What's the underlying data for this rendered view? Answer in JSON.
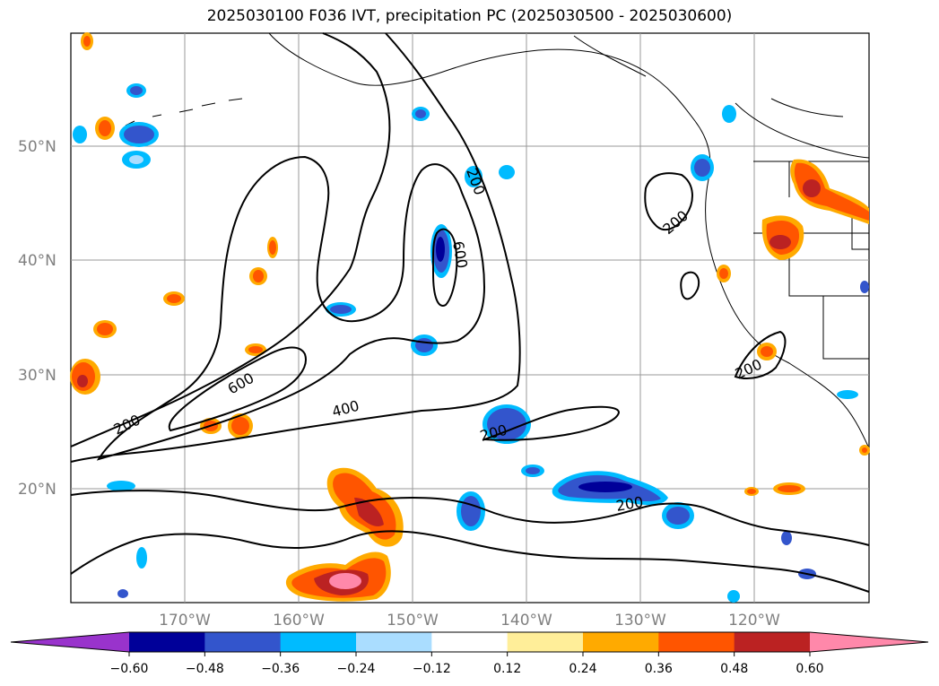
{
  "title": "2025030100 F036 IVT, precipitation PC (2025030500 - 2025030600)",
  "latitude_labels": [
    "50°N",
    "40°N",
    "30°N",
    "20°N"
  ],
  "longitude_labels": [
    "170°W",
    "160°W",
    "150°W",
    "140°W",
    "130°W",
    "120°W"
  ],
  "map_extent": {
    "lon_min": -180,
    "lon_max": -110,
    "lat_min": 10,
    "lat_max": 60
  },
  "ivt_contour_labels": [
    "200",
    "400",
    "600",
    "200",
    "600",
    "200",
    "200",
    "200",
    "200"
  ],
  "colorbar": {
    "ticks": [
      "−0.60",
      "−0.48",
      "−0.36",
      "−0.24",
      "−0.12",
      "0.12",
      "0.24",
      "0.36",
      "0.48",
      "0.60"
    ],
    "colors": [
      "#9933cc",
      "#000099",
      "#3355cc",
      "#00bbff",
      "#aaddff",
      "#ffffff",
      "#ffee99",
      "#ffaa00",
      "#ff5500",
      "#bb2222",
      "#ff88aa"
    ],
    "extend": "both"
  }
}
